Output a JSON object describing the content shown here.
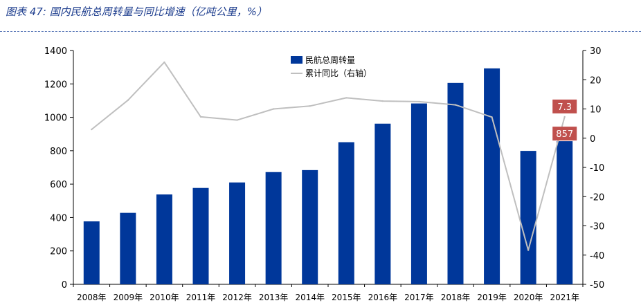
{
  "figure": {
    "title": "图表 47:  国内民航总周转量与同比增速（亿吨公里，%）",
    "accent_color": "#1f3f8f"
  },
  "chart_data": {
    "type": "bar",
    "categories": [
      "2008年",
      "2009年",
      "2010年",
      "2011年",
      "2012年",
      "2013年",
      "2014年",
      "2015年",
      "2016年",
      "2017年",
      "2018年",
      "2019年",
      "2020年",
      "2021年"
    ],
    "series": [
      {
        "name": "民航总周转量",
        "type": "bar",
        "axis": "left",
        "color": "#00379a",
        "values": [
          377,
          428,
          538,
          577,
          610,
          672,
          684,
          851,
          962,
          1083,
          1206,
          1293,
          799,
          857
        ]
      },
      {
        "name": "累计同比（右轴）",
        "type": "line",
        "axis": "right",
        "color": "#bfbfbf",
        "values": [
          3,
          13,
          26,
          7.3,
          6.2,
          10,
          11,
          13.8,
          12.7,
          12.5,
          11.4,
          7.2,
          -38.3,
          7.3
        ]
      }
    ],
    "left_axis": {
      "ylim": [
        0,
        1400
      ],
      "ticks": [
        0,
        200,
        400,
        600,
        800,
        1000,
        1200,
        1400
      ]
    },
    "right_axis": {
      "ylim": [
        -50,
        30
      ],
      "ticks": [
        -50,
        -40,
        -30,
        -20,
        -10,
        0,
        10,
        20,
        30
      ]
    },
    "legend": {
      "placement": "top-center"
    },
    "grid": false,
    "annotations": [
      {
        "text": "7.3",
        "category": "2021年",
        "series": "累计同比（右轴）",
        "color": "#c0504d"
      },
      {
        "text": "857",
        "category": "2021年",
        "series": "民航总周转量",
        "color": "#c0504d"
      }
    ]
  }
}
